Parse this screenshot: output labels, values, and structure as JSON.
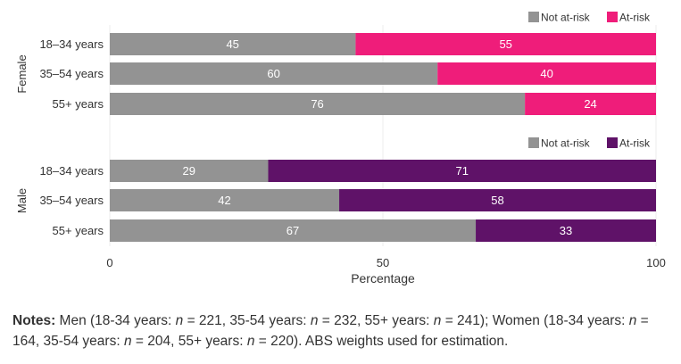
{
  "chart_data": {
    "type": "bar",
    "orientation": "horizontal",
    "stacked": true,
    "xlabel": "Percentage",
    "xlim": [
      0,
      100
    ],
    "xticks": [
      0,
      50,
      100
    ],
    "grid": true,
    "panels": [
      {
        "name": "Female",
        "categories": [
          "18–34 years",
          "35–54 years",
          "55+ years"
        ],
        "legend_position": "top-right",
        "series": [
          {
            "name": "Not at-risk",
            "color": "#939393",
            "values": [
              45,
              60,
              76
            ]
          },
          {
            "name": "At-risk",
            "color": "#ef1d7a",
            "values": [
              55,
              40,
              24
            ]
          }
        ]
      },
      {
        "name": "Male",
        "categories": [
          "18–34 years",
          "35–54 years",
          "55+ years"
        ],
        "legend_position": "top-right",
        "series": [
          {
            "name": "Not at-risk",
            "color": "#939393",
            "values": [
              29,
              42,
              67
            ]
          },
          {
            "name": "At-risk",
            "color": "#5f1268",
            "values": [
              71,
              58,
              33
            ]
          }
        ]
      }
    ]
  },
  "notes": {
    "label": "Notes:",
    "men_prefix": " Men (18-34 years: ",
    "n1": "n",
    "v1": " = 221, 35-54 years: ",
    "n2": "n",
    "v2": " = 232, 55+ years: ",
    "n3": "n",
    "v3": " = 241); Women (18-34 years: ",
    "n4": "n",
    "v4": " = 164, 35-54 years: ",
    "n5": "n",
    "v5": " = 204, 55+ years: ",
    "n6": "n",
    "v6": " = 220). ABS weights used for estimation."
  }
}
